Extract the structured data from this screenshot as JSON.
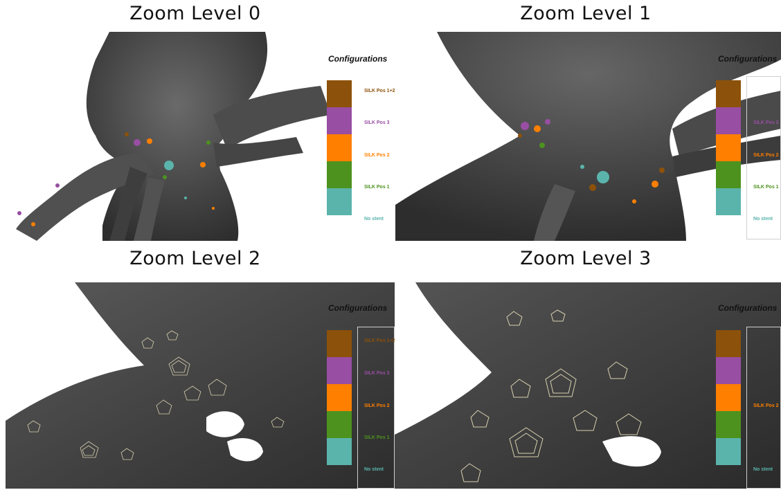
{
  "panels": [
    {
      "title": "Zoom Level 0"
    },
    {
      "title": "Zoom Level 1"
    },
    {
      "title": "Zoom Level 2"
    },
    {
      "title": "Zoom Level 3"
    }
  ],
  "legend": {
    "title": "Configurations",
    "items": [
      {
        "label": "SILK Pos 1+2",
        "color": "#8c510a"
      },
      {
        "label": "SILK Pos 3",
        "color": "#984ea3"
      },
      {
        "label": "SILK Pos 2",
        "color": "#ff7f00"
      },
      {
        "label": "SILK Pos 1",
        "color": "#4d921e"
      },
      {
        "label": "No stent",
        "color": "#5ab4ac"
      }
    ]
  },
  "colors": {
    "surface": "#4a4a4a",
    "surface_dark": "#2f2f2f",
    "glyph_line": "#d9d2b0"
  }
}
